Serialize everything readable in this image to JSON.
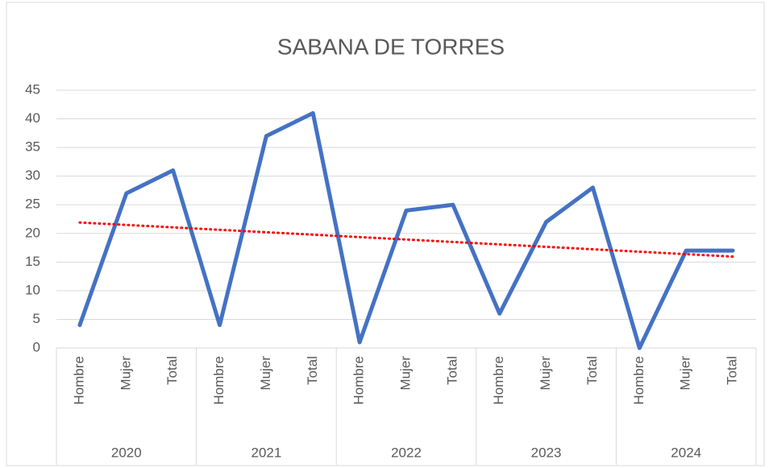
{
  "chart_data": {
    "type": "line",
    "title": "SABANA DE TORRES",
    "groups": [
      {
        "name": "2020",
        "categories": [
          "Hombre",
          "Mujer",
          "Total"
        ]
      },
      {
        "name": "2021",
        "categories": [
          "Hombre",
          "Mujer",
          "Total"
        ]
      },
      {
        "name": "2022",
        "categories": [
          "Hombre",
          "Mujer",
          "Total"
        ]
      },
      {
        "name": "2023",
        "categories": [
          "Hombre",
          "Mujer",
          "Total"
        ]
      },
      {
        "name": "2024",
        "categories": [
          "Hombre",
          "Mujer",
          "Total"
        ]
      }
    ],
    "series": [
      {
        "color": "#4472c4",
        "values": [
          4,
          27,
          31,
          4,
          37,
          41,
          1,
          24,
          25,
          6,
          22,
          28,
          0,
          17,
          17
        ]
      }
    ],
    "trendline": {
      "type": "linear",
      "color": "#ff0000"
    },
    "ylim": [
      0,
      45
    ],
    "yticks": [
      0,
      5,
      10,
      15,
      20,
      25,
      30,
      35,
      40,
      45
    ],
    "grid": true
  }
}
